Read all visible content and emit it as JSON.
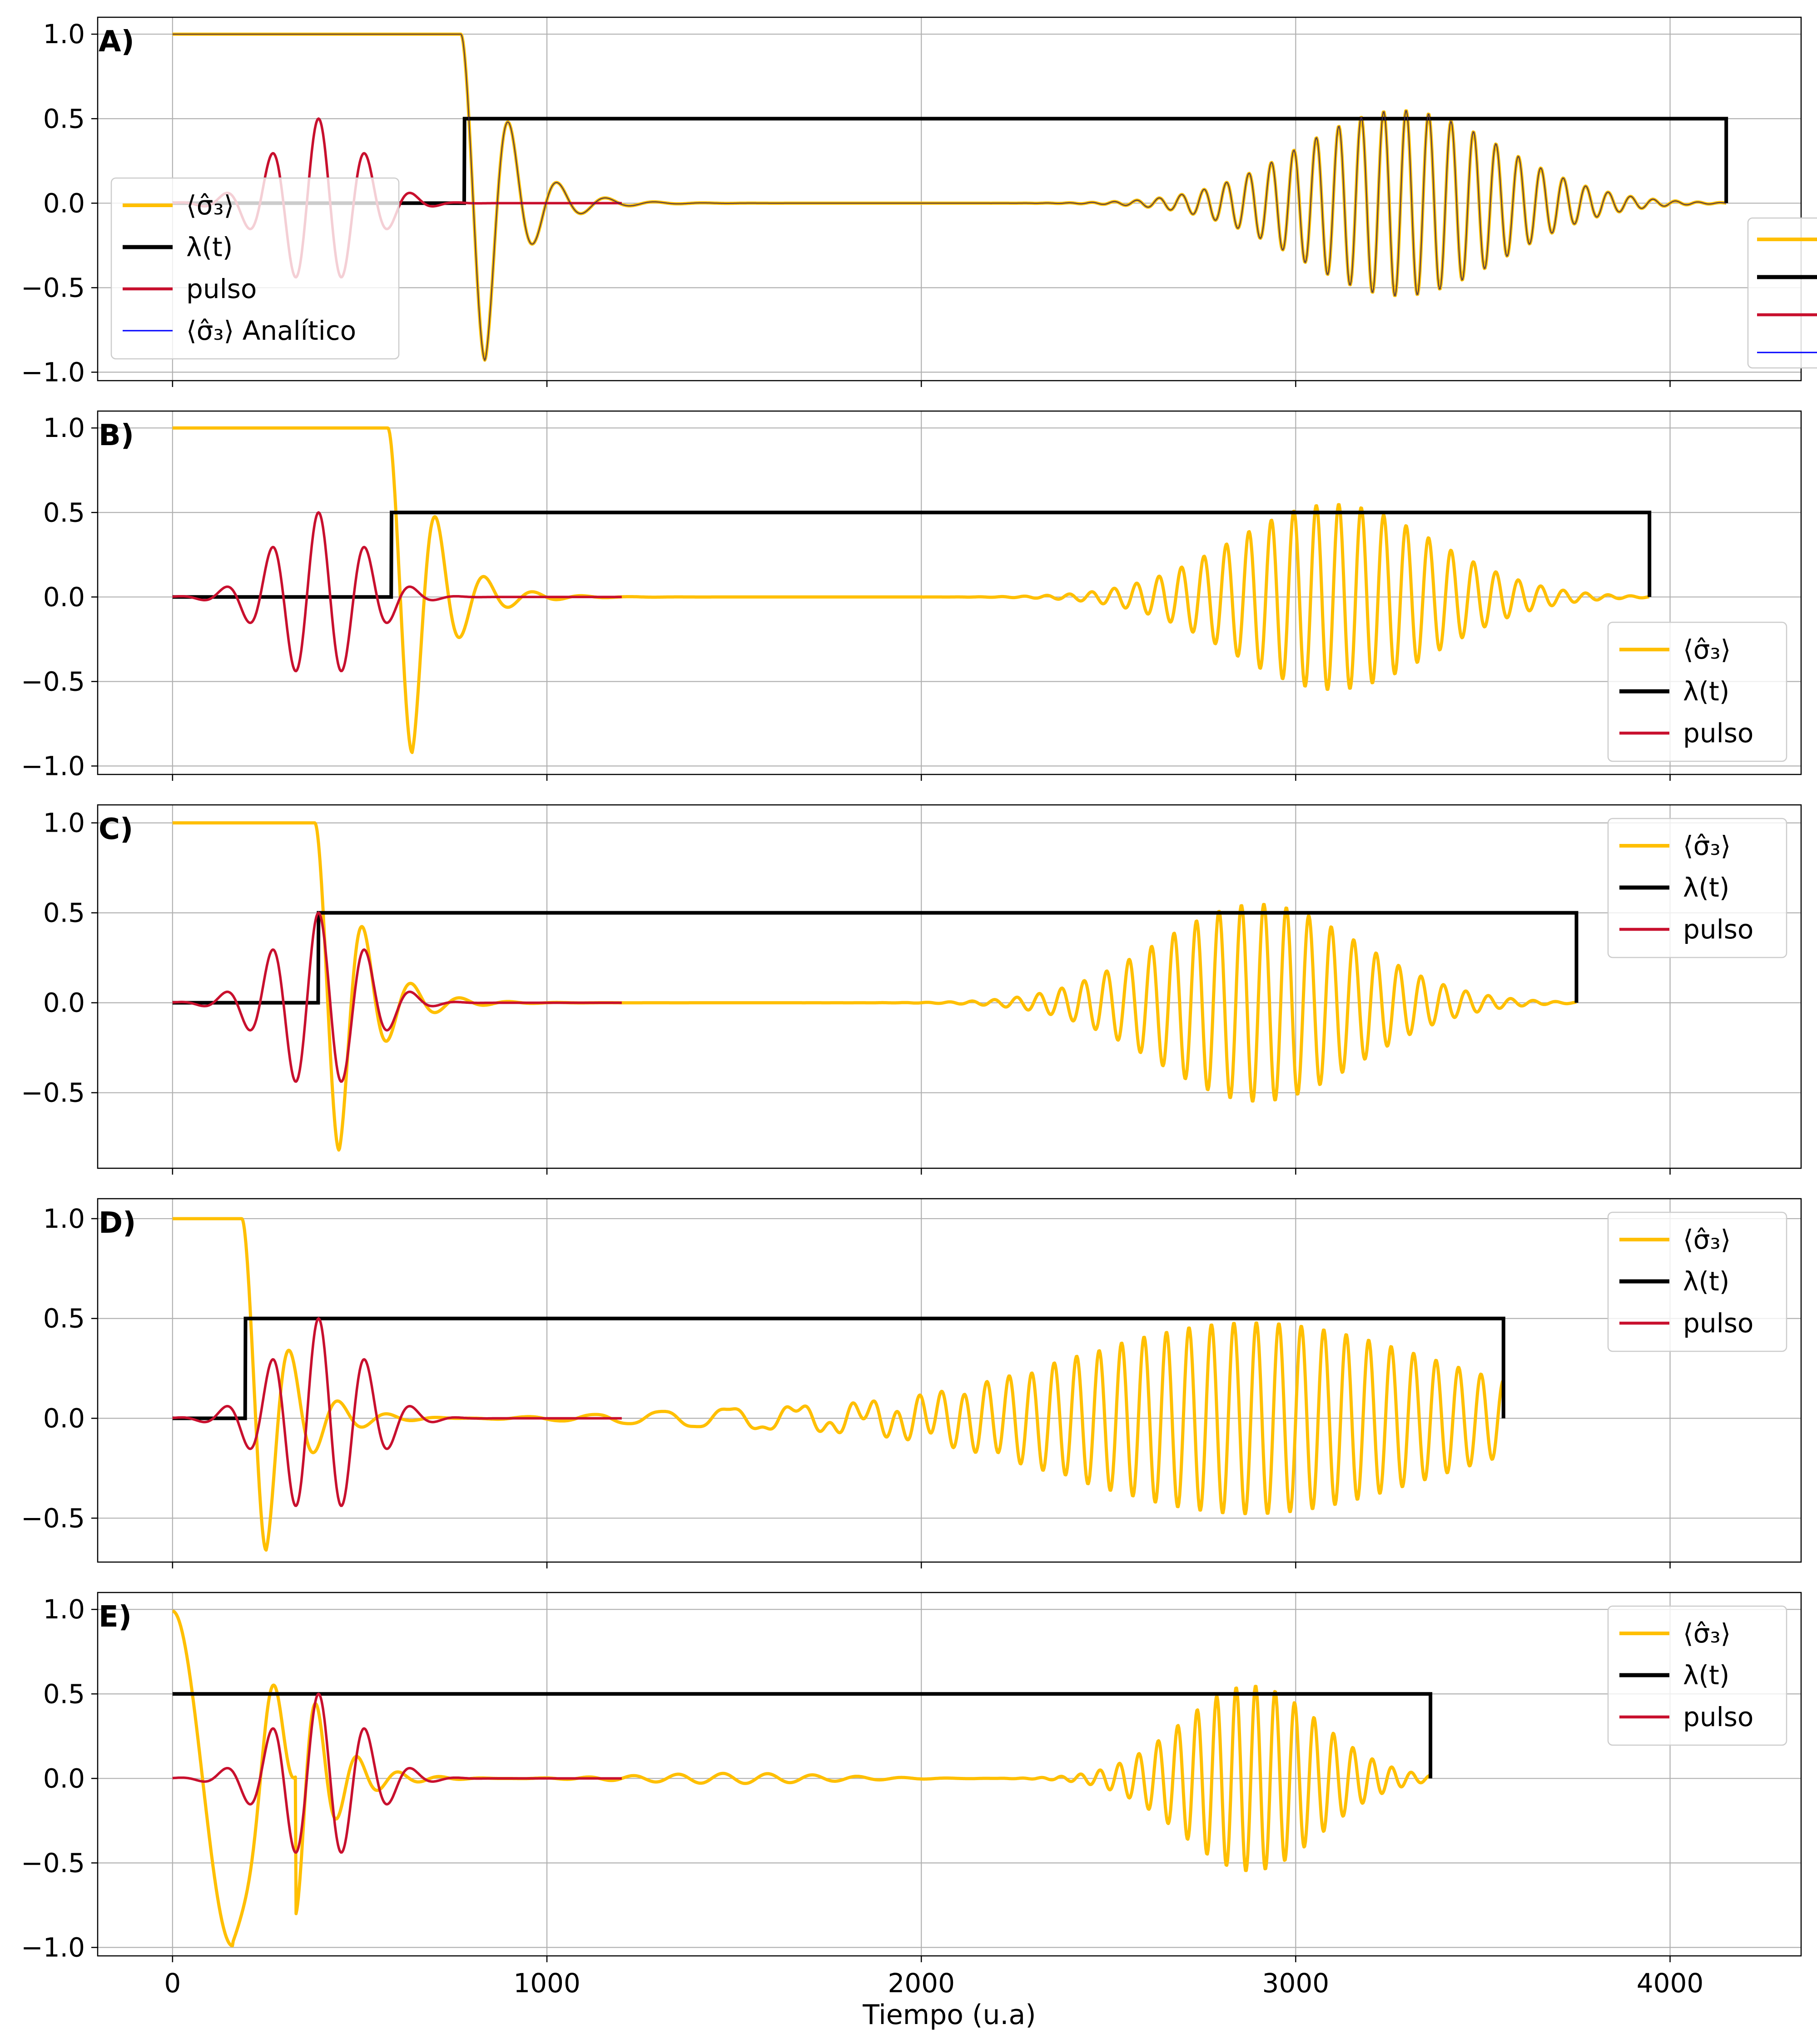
{
  "figure": {
    "xlabel": "Tiempo (u.a)",
    "x_ticks": [
      0,
      1000,
      2000,
      3000,
      4000
    ],
    "xlim": [
      -200,
      4350
    ]
  },
  "colors": {
    "sigma": "#FFBF00",
    "lambda": "#000000",
    "pulso": "#C8102E",
    "analitico": "#0000FF",
    "grid": "#B0B0B0"
  },
  "chart_data": [
    {
      "type": "line",
      "panel": "A)",
      "ylim": [
        -1.05,
        1.1
      ],
      "y_ticks": [
        1.0,
        0.5,
        0.0,
        -0.5,
        -1.0
      ],
      "y_tick_labels": [
        "1.0",
        "0.5",
        "0.0",
        "−0.5",
        "−1.0"
      ],
      "grid": true,
      "legend_position": "left, partially covering the pulse",
      "extra_legend_fragment": "right edge, clipped",
      "legend": [
        {
          "series": "sigma",
          "label": "⟨σ̂₃⟩"
        },
        {
          "series": "lambda",
          "label": "λ(t)"
        },
        {
          "series": "pulso",
          "label": "pulso"
        },
        {
          "series": "analitico",
          "label": "⟨σ̂₃⟩ Analítico"
        }
      ],
      "step_time": 780,
      "end_time": 4150,
      "lambda_level": 0.5,
      "sigma_peaks": {
        "first_min": -0.93,
        "first_max": 0.75,
        "late_max": 0.55,
        "late_min": -0.56
      },
      "late_envelope_center": 3280
    },
    {
      "type": "line",
      "panel": "B)",
      "ylim": [
        -1.05,
        1.1
      ],
      "y_ticks": [
        1.0,
        0.5,
        0.0,
        -0.5,
        -1.0
      ],
      "y_tick_labels": [
        "1.0",
        "0.5",
        "0.0",
        "−0.5",
        "−1.0"
      ],
      "grid": true,
      "legend_position": "lower right",
      "legend": [
        {
          "series": "sigma",
          "label": "⟨σ̂₃⟩"
        },
        {
          "series": "lambda",
          "label": "λ(t)"
        },
        {
          "series": "pulso",
          "label": "pulso"
        }
      ],
      "step_time": 585,
      "end_time": 3945,
      "lambda_level": 0.5,
      "sigma_peaks": {
        "first_min": -0.92,
        "first_max": 0.74,
        "late_max": 0.55,
        "late_min": -0.55
      },
      "late_envelope_center": 3100
    },
    {
      "type": "line",
      "panel": "C)",
      "ylim": [
        -0.92,
        1.1
      ],
      "y_ticks": [
        1.0,
        0.5,
        0.0,
        -0.5
      ],
      "y_tick_labels": [
        "1.0",
        "0.5",
        "0.0",
        "−0.5"
      ],
      "grid": true,
      "legend_position": "upper right",
      "legend": [
        {
          "series": "sigma",
          "label": "⟨σ̂₃⟩"
        },
        {
          "series": "lambda",
          "label": "λ(t)"
        },
        {
          "series": "pulso",
          "label": "pulso"
        }
      ],
      "step_time": 390,
      "end_time": 3750,
      "lambda_level": 0.5,
      "sigma_peaks": {
        "first_min": -0.82,
        "first_max": 0.57,
        "late_max": 0.55,
        "late_min": -0.55
      },
      "late_envelope_center": 2900
    },
    {
      "type": "line",
      "panel": "D)",
      "ylim": [
        -0.72,
        1.1
      ],
      "y_ticks": [
        1.0,
        0.5,
        0.0,
        -0.5
      ],
      "y_tick_labels": [
        "1.0",
        "0.5",
        "0.0",
        "−0.5"
      ],
      "grid": true,
      "legend_position": "upper right",
      "legend": [
        {
          "series": "sigma",
          "label": "⟨σ̂₃⟩"
        },
        {
          "series": "lambda",
          "label": "λ(t)"
        },
        {
          "series": "pulso",
          "label": "pulso"
        }
      ],
      "step_time": 195,
      "end_time": 3555,
      "lambda_level": 0.5,
      "sigma_peaks": {
        "first_min": -0.66,
        "first_max": 0.38,
        "late_max": 0.48,
        "late_min": -0.52
      },
      "late_envelope_center": 2880
    },
    {
      "type": "line",
      "panel": "E)",
      "ylim": [
        -1.05,
        1.1
      ],
      "y_ticks": [
        1.0,
        0.5,
        0.0,
        -0.5,
        -1.0
      ],
      "y_tick_labels": [
        "1.0",
        "0.5",
        "0.0",
        "−0.5",
        "−1.0"
      ],
      "grid": true,
      "legend_position": "upper right",
      "legend": [
        {
          "series": "sigma",
          "label": "⟨σ̂₃⟩"
        },
        {
          "series": "lambda",
          "label": "λ(t)"
        },
        {
          "series": "pulso",
          "label": "pulso"
        }
      ],
      "step_time": 0,
      "end_time": 3360,
      "lambda_level": 0.5,
      "sigma_peaks": {
        "first_min": -0.99,
        "first_max": 0.45,
        "late_max": 0.55,
        "late_min": -0.53
      },
      "late_envelope_center": 2880
    }
  ]
}
